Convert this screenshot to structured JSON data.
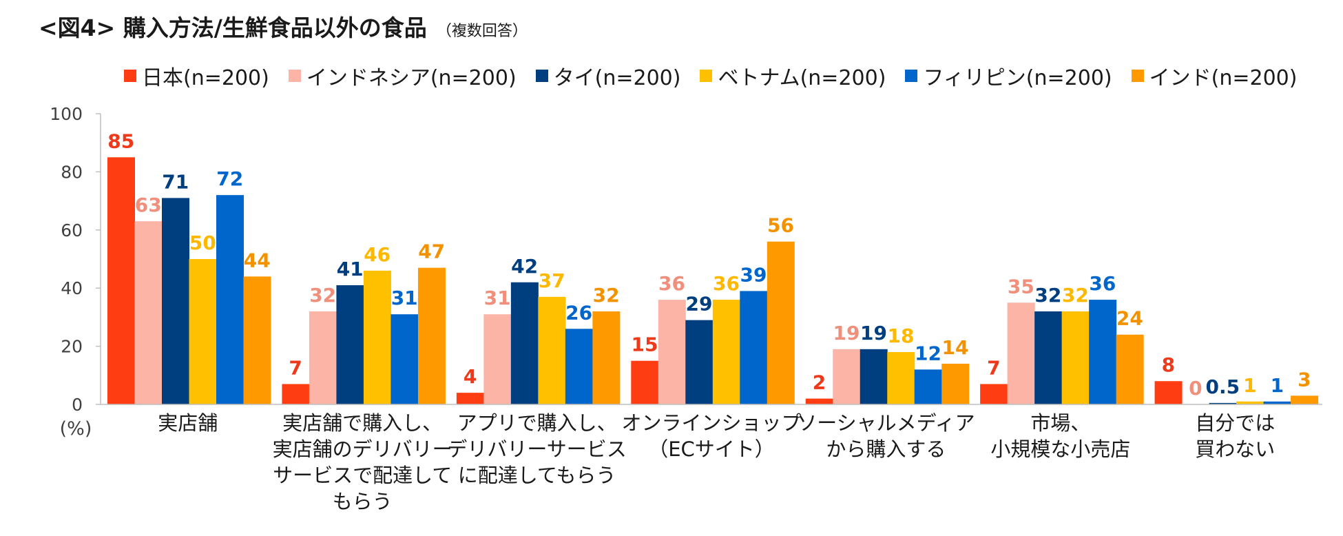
{
  "title": {
    "main": "<図4> 購入方法/生鮮食品以外の食品",
    "sub": "（複数回答）"
  },
  "chart_data": {
    "type": "bar",
    "categories": [
      [
        "実店舗"
      ],
      [
        "実店舗で購入し、",
        "実店舗のデリバリー",
        "サービスで配達して",
        "もらう"
      ],
      [
        "アプリで購入し、",
        "デリバリーサービス",
        "に配達してもらう"
      ],
      [
        "オンラインショップ",
        "（ECサイト）"
      ],
      [
        "ソーシャルメディア",
        "から購入する"
      ],
      [
        "市場、",
        "小規模な小売店"
      ],
      [
        "自分では",
        "買わない"
      ]
    ],
    "series": [
      {
        "name": "日本(n=200)",
        "color": "#FF3D12",
        "labelColor": "#EE3A1A",
        "values": [
          85,
          7,
          4,
          15,
          2,
          7,
          8
        ],
        "labels": [
          "85",
          "7",
          "4",
          "15",
          "2",
          "7",
          "8"
        ]
      },
      {
        "name": "インドネシア(n=200)",
        "color": "#FBB4A5",
        "labelColor": "#F0907C",
        "values": [
          63,
          32,
          31,
          36,
          19,
          35,
          0
        ],
        "labels": [
          "63",
          "32",
          "31",
          "36",
          "19",
          "35",
          "0"
        ]
      },
      {
        "name": "タイ(n=200)",
        "color": "#003F7F",
        "labelColor": "#003F7F",
        "values": [
          71,
          41,
          42,
          29,
          19,
          32,
          0.5
        ],
        "labels": [
          "71",
          "41",
          "42",
          "29",
          "19",
          "32",
          "0.5"
        ]
      },
      {
        "name": "ベトナム(n=200)",
        "color": "#FFC000",
        "labelColor": "#FFB800",
        "values": [
          50,
          46,
          37,
          36,
          18,
          32,
          1
        ],
        "labels": [
          "50",
          "46",
          "37",
          "36",
          "18",
          "32",
          "1"
        ]
      },
      {
        "name": "フィリピン(n=200)",
        "color": "#0066CC",
        "labelColor": "#0066CC",
        "values": [
          72,
          31,
          26,
          39,
          12,
          36,
          1
        ],
        "labels": [
          "72",
          "31",
          "26",
          "39",
          "12",
          "36",
          "1"
        ]
      },
      {
        "name": "インド(n=200)",
        "color": "#FF9900",
        "labelColor": "#F39200",
        "values": [
          44,
          47,
          32,
          56,
          14,
          24,
          3
        ],
        "labels": [
          "44",
          "47",
          "32",
          "56",
          "14",
          "24",
          "3"
        ]
      }
    ],
    "yticks": [
      "0",
      "20",
      "40",
      "60",
      "80",
      "100"
    ],
    "ylabel": "(%)",
    "ylim": [
      0,
      100
    ],
    "grid": false,
    "legend_position": "top"
  }
}
